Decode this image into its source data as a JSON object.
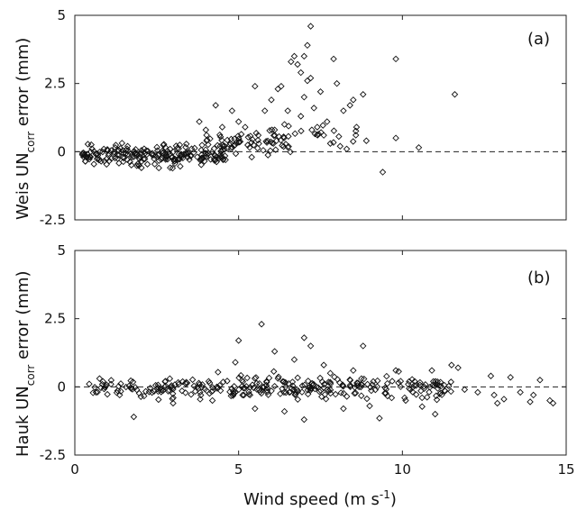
{
  "chart_data": [
    {
      "type": "scatter",
      "panel_label": "(a)",
      "ylabel_main": "Weis UN",
      "ylabel_sub": "corr",
      "ylabel_rest": " error (mm)",
      "xlim": [
        0,
        15
      ],
      "ylim": [
        -2.5,
        5
      ],
      "xticks": [
        0,
        5,
        10,
        15
      ],
      "yticks": [
        -2.5,
        0,
        2.5,
        5
      ],
      "ytick_labels": [
        "-2.5",
        "0",
        "2.5",
        "5"
      ],
      "reference_line": 0,
      "marker": "diamond",
      "seed": 7,
      "points": [
        [
          5.5,
          2.4
        ],
        [
          5.8,
          1.5
        ],
        [
          6.0,
          1.9
        ],
        [
          6.2,
          2.3
        ],
        [
          6.3,
          2.4
        ],
        [
          6.5,
          1.5
        ],
        [
          6.6,
          3.3
        ],
        [
          6.7,
          3.5
        ],
        [
          6.8,
          3.2
        ],
        [
          6.9,
          2.9
        ],
        [
          7.0,
          3.5
        ],
        [
          7.1,
          3.9
        ],
        [
          7.2,
          4.6
        ],
        [
          7.1,
          2.6
        ],
        [
          7.2,
          2.7
        ],
        [
          7.3,
          1.6
        ],
        [
          7.0,
          2.0
        ],
        [
          6.9,
          1.3
        ],
        [
          7.5,
          2.2
        ],
        [
          7.7,
          1.1
        ],
        [
          7.9,
          3.4
        ],
        [
          8.0,
          2.5
        ],
        [
          8.2,
          1.5
        ],
        [
          8.4,
          1.7
        ],
        [
          8.5,
          1.9
        ],
        [
          8.6,
          0.9
        ],
        [
          8.8,
          2.1
        ],
        [
          8.9,
          0.4
        ],
        [
          9.8,
          3.4
        ],
        [
          9.8,
          0.5
        ],
        [
          11.6,
          2.1
        ],
        [
          9.4,
          -0.75
        ],
        [
          10.5,
          0.15
        ],
        [
          8.1,
          0.2
        ],
        [
          7.6,
          0.6
        ],
        [
          6.1,
          0.8
        ],
        [
          5.0,
          1.1
        ],
        [
          4.8,
          1.5
        ],
        [
          4.5,
          0.9
        ],
        [
          4.3,
          1.7
        ],
        [
          3.8,
          1.1
        ],
        [
          4.0,
          0.8
        ],
        [
          5.6,
          0.6
        ],
        [
          5.2,
          0.9
        ],
        [
          6.4,
          1.0
        ],
        [
          7.4,
          0.9
        ],
        [
          7.8,
          0.3
        ],
        [
          8.3,
          0.1
        ],
        [
          4.6,
          -0.3
        ],
        [
          5.4,
          -0.2
        ]
      ],
      "clusters": [
        {
          "n": 210,
          "x": [
            0.2,
            4.6
          ],
          "y": [
            -0.7,
            0.45
          ]
        },
        {
          "n": 60,
          "x": [
            4.0,
            6.6
          ],
          "y": [
            -0.3,
            1.0
          ]
        },
        {
          "n": 25,
          "x": [
            5.8,
            8.8
          ],
          "y": [
            0.1,
            1.2
          ]
        }
      ]
    },
    {
      "type": "scatter",
      "panel_label": "(b)",
      "ylabel_main": "Hauk UN",
      "ylabel_sub": "corr",
      "ylabel_rest": " error (mm)",
      "xlim": [
        0,
        15
      ],
      "ylim": [
        -2.5,
        5
      ],
      "xticks": [
        0,
        5,
        10,
        15
      ],
      "yticks": [
        -2.5,
        0,
        2.5,
        5
      ],
      "ytick_labels": [
        "-2.5",
        "0",
        "2.5",
        "5"
      ],
      "xlabel_main": "Wind speed (m s",
      "xlabel_sup": "-1",
      "xlabel_end": ")",
      "reference_line": 0,
      "marker": "diamond",
      "seed": 13,
      "points": [
        [
          5.0,
          1.7
        ],
        [
          5.7,
          2.3
        ],
        [
          7.0,
          1.8
        ],
        [
          7.2,
          1.5
        ],
        [
          8.8,
          1.5
        ],
        [
          6.1,
          1.3
        ],
        [
          6.7,
          1.0
        ],
        [
          4.9,
          0.9
        ],
        [
          7.6,
          0.8
        ],
        [
          11.5,
          0.8
        ],
        [
          11.7,
          0.7
        ],
        [
          10.9,
          0.6
        ],
        [
          9.8,
          0.6
        ],
        [
          1.8,
          -1.1
        ],
        [
          7.0,
          -1.2
        ],
        [
          9.3,
          -1.15
        ],
        [
          11.0,
          -1.0
        ],
        [
          14.6,
          -0.6
        ],
        [
          13.9,
          -0.55
        ],
        [
          12.9,
          -0.6
        ],
        [
          12.7,
          0.4
        ],
        [
          13.3,
          0.35
        ],
        [
          14.2,
          0.25
        ],
        [
          14.0,
          -0.3
        ],
        [
          12.3,
          -0.2
        ],
        [
          12.8,
          -0.3
        ],
        [
          13.1,
          -0.45
        ],
        [
          13.6,
          -0.2
        ],
        [
          14.5,
          -0.5
        ],
        [
          11.9,
          -0.1
        ],
        [
          6.4,
          -0.9
        ],
        [
          8.2,
          -0.8
        ],
        [
          9.0,
          -0.7
        ],
        [
          5.5,
          -0.8
        ],
        [
          3.0,
          -0.6
        ],
        [
          4.2,
          -0.5
        ],
        [
          10.1,
          -0.5
        ],
        [
          10.6,
          -0.4
        ],
        [
          7.8,
          0.5
        ],
        [
          8.5,
          0.6
        ]
      ],
      "clusters": [
        {
          "n": 260,
          "x": [
            0.3,
            11.5
          ],
          "y": [
            -0.55,
            0.5
          ]
        },
        {
          "n": 45,
          "x": [
            2.0,
            11.0
          ],
          "y": [
            -0.75,
            0.75
          ]
        }
      ]
    }
  ]
}
